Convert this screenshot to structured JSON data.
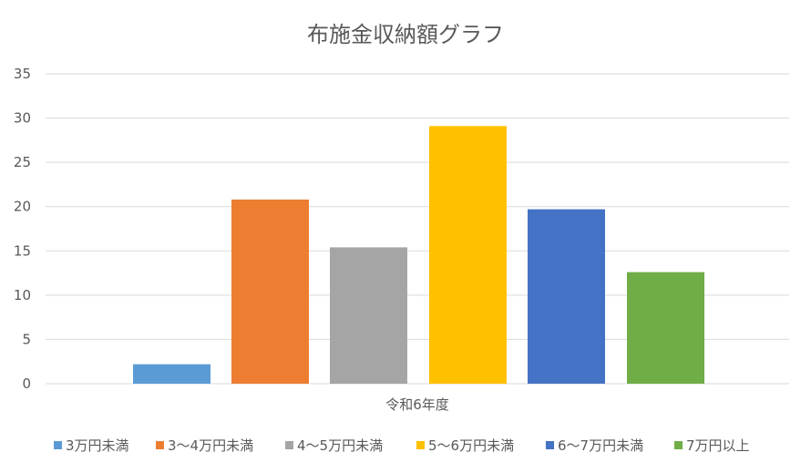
{
  "chart_data": {
    "type": "bar",
    "title": "布施金収納額グラフ",
    "categories": [
      "令和6年度"
    ],
    "series": [
      {
        "name": "3万円未満",
        "values": [
          2.2
        ],
        "color": "#5b9bd5"
      },
      {
        "name": "3～4万円未満",
        "values": [
          20.8
        ],
        "color": "#ed7d31"
      },
      {
        "name": "4～5万円未満",
        "values": [
          15.4
        ],
        "color": "#a5a5a5"
      },
      {
        "name": "5～6万円未満",
        "values": [
          29.1
        ],
        "color": "#ffc000"
      },
      {
        "name": "6～7万円未満",
        "values": [
          19.7
        ],
        "color": "#4472c4"
      },
      {
        "name": "7万円以上",
        "values": [
          12.6
        ],
        "color": "#70ad47"
      }
    ],
    "ylim": [
      0,
      35
    ],
    "yticks": [
      0,
      5,
      10,
      15,
      20,
      25,
      30,
      35
    ],
    "grid": true,
    "legend_position": "bottom"
  }
}
